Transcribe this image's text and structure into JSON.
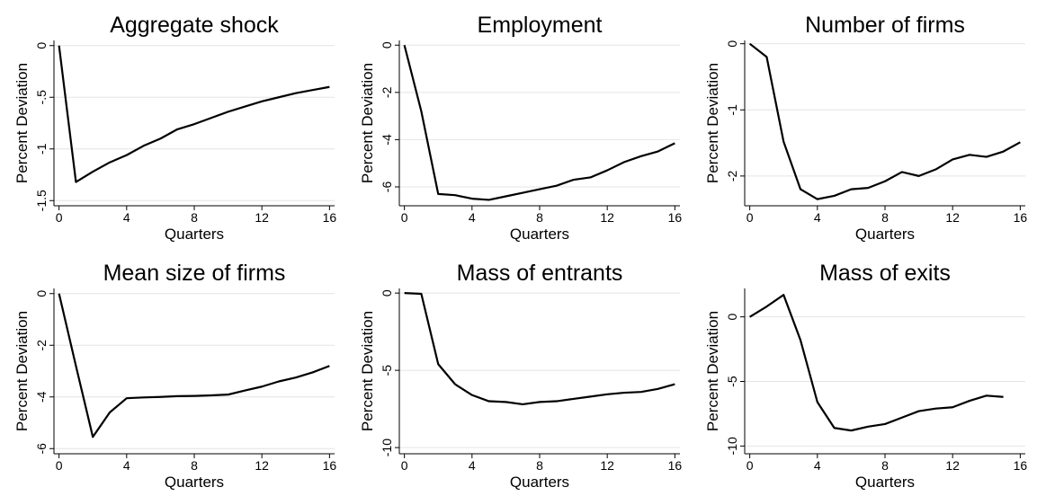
{
  "chart_data": [
    {
      "type": "line",
      "title": "Aggregate shock",
      "xlabel": "Quarters",
      "ylabel": "Percent Deviation",
      "x": [
        0,
        1,
        2,
        3,
        4,
        5,
        6,
        7,
        8,
        9,
        10,
        11,
        12,
        13,
        14,
        15,
        16
      ],
      "series": [
        {
          "values": [
            0,
            -1.32,
            -1.22,
            -1.13,
            -1.06,
            -0.97,
            -0.9,
            -0.81,
            -0.76,
            -0.7,
            -0.64,
            -0.59,
            -0.54,
            -0.5,
            -0.46,
            -0.43,
            -0.4
          ],
          "color": "#000000"
        }
      ],
      "xlim": [
        -0.3,
        16.3
      ],
      "xticks": [
        0,
        4,
        8,
        12,
        16
      ],
      "ylim": [
        -1.55,
        0.05
      ],
      "yticks": [
        0,
        {
          "value": -0.5,
          "label": "-.5"
        },
        -1,
        -1.5
      ],
      "grid": true
    },
    {
      "type": "line",
      "title": "Employment",
      "xlabel": "Quarters",
      "ylabel": "Percent Deviation",
      "x": [
        0,
        1,
        2,
        3,
        4,
        5,
        6,
        7,
        8,
        9,
        10,
        11,
        12,
        13,
        14,
        15,
        16
      ],
      "series": [
        {
          "values": [
            0,
            -2.8,
            -6.3,
            -6.35,
            -6.5,
            -6.55,
            -6.4,
            -6.25,
            -6.1,
            -5.95,
            -5.7,
            -5.6,
            -5.3,
            -4.95,
            -4.7,
            -4.5,
            -4.15
          ],
          "color": "#000000"
        }
      ],
      "xlim": [
        -0.3,
        16.3
      ],
      "xticks": [
        0,
        4,
        8,
        12,
        16
      ],
      "ylim": [
        -6.8,
        0.2
      ],
      "yticks": [
        0,
        -2,
        -4,
        -6
      ],
      "grid": true
    },
    {
      "type": "line",
      "title": "Number of firms",
      "xlabel": "Quarters",
      "ylabel": "Percent Deviation",
      "x": [
        0,
        1,
        2,
        3,
        4,
        5,
        6,
        7,
        8,
        9,
        10,
        11,
        12,
        13,
        14,
        15,
        16
      ],
      "series": [
        {
          "values": [
            0,
            -0.2,
            -1.48,
            -2.2,
            -2.35,
            -2.3,
            -2.2,
            -2.18,
            -2.08,
            -1.94,
            -2.0,
            -1.9,
            -1.75,
            -1.68,
            -1.71,
            -1.63,
            -1.49
          ],
          "color": "#000000"
        }
      ],
      "xlim": [
        -0.3,
        16.3
      ],
      "xticks": [
        0,
        4,
        8,
        12,
        16
      ],
      "ylim": [
        -2.45,
        0.05
      ],
      "yticks": [
        0,
        -1,
        -2
      ],
      "grid": true
    },
    {
      "type": "line",
      "title": "Mean size of firms",
      "xlabel": "Quarters",
      "ylabel": "Percent Deviation",
      "x": [
        0,
        1,
        2,
        3,
        4,
        5,
        6,
        7,
        8,
        9,
        10,
        11,
        12,
        13,
        14,
        15,
        16
      ],
      "series": [
        {
          "values": [
            0,
            -2.8,
            -5.55,
            -4.6,
            -4.05,
            -4.02,
            -4.0,
            -3.97,
            -3.96,
            -3.94,
            -3.91,
            -3.75,
            -3.6,
            -3.4,
            -3.25,
            -3.05,
            -2.8
          ],
          "color": "#000000"
        }
      ],
      "xlim": [
        -0.3,
        16.3
      ],
      "xticks": [
        0,
        4,
        8,
        12,
        16
      ],
      "ylim": [
        -6.2,
        0.2
      ],
      "yticks": [
        0,
        -2,
        -4,
        -6
      ],
      "grid": true
    },
    {
      "type": "line",
      "title": "Mass of entrants",
      "xlabel": "Quarters",
      "ylabel": "Percent Deviation",
      "x": [
        0,
        1,
        2,
        3,
        4,
        5,
        6,
        7,
        8,
        9,
        10,
        11,
        12,
        13,
        14,
        15,
        16
      ],
      "series": [
        {
          "values": [
            0,
            -0.05,
            -4.6,
            -5.9,
            -6.6,
            -7.0,
            -7.05,
            -7.2,
            -7.05,
            -7.0,
            -6.85,
            -6.7,
            -6.55,
            -6.45,
            -6.4,
            -6.2,
            -5.9
          ],
          "color": "#000000"
        }
      ],
      "xlim": [
        -0.3,
        16.3
      ],
      "xticks": [
        0,
        4,
        8,
        12,
        16
      ],
      "ylim": [
        -10.4,
        0.3
      ],
      "yticks": [
        0,
        -5,
        -10
      ],
      "grid": true
    },
    {
      "type": "line",
      "title": "Mass of exits",
      "xlabel": "Quarters",
      "ylabel": "Percent Deviation",
      "x": [
        0,
        1,
        2,
        3,
        4,
        5,
        6,
        7,
        8,
        9,
        10,
        11,
        12,
        13,
        14,
        15
      ],
      "series": [
        {
          "values": [
            0,
            0.8,
            1.7,
            -1.8,
            -6.6,
            -8.6,
            -8.8,
            -8.5,
            -8.3,
            -7.8,
            -7.3,
            -7.1,
            -7.0,
            -6.5,
            -6.1,
            -6.2
          ],
          "color": "#000000"
        }
      ],
      "xlim": [
        -0.3,
        16.3
      ],
      "xticks": [
        0,
        4,
        8,
        12,
        16
      ],
      "ylim": [
        -10.6,
        2.2
      ],
      "yticks": [
        0,
        -5,
        -10
      ],
      "grid": true
    }
  ]
}
